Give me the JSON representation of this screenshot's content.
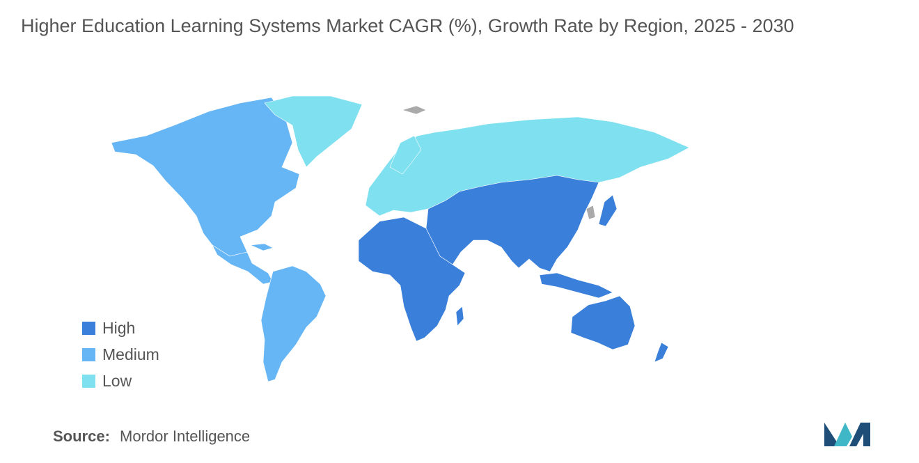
{
  "title": "Higher Education Learning Systems Market CAGR (%), Growth Rate by Region, 2025 - 2030",
  "legend": [
    {
      "label": "High",
      "color": "#3a7fd9"
    },
    {
      "label": "Medium",
      "color": "#66b5f5"
    },
    {
      "label": "Low",
      "color": "#7fe0f0"
    }
  ],
  "colors": {
    "no_data": "#aaaaaa",
    "logo_dark": "#1f4f78",
    "logo_light": "#3fb7c7"
  },
  "source": {
    "label": "Source:",
    "value": "Mordor Intelligence"
  }
}
